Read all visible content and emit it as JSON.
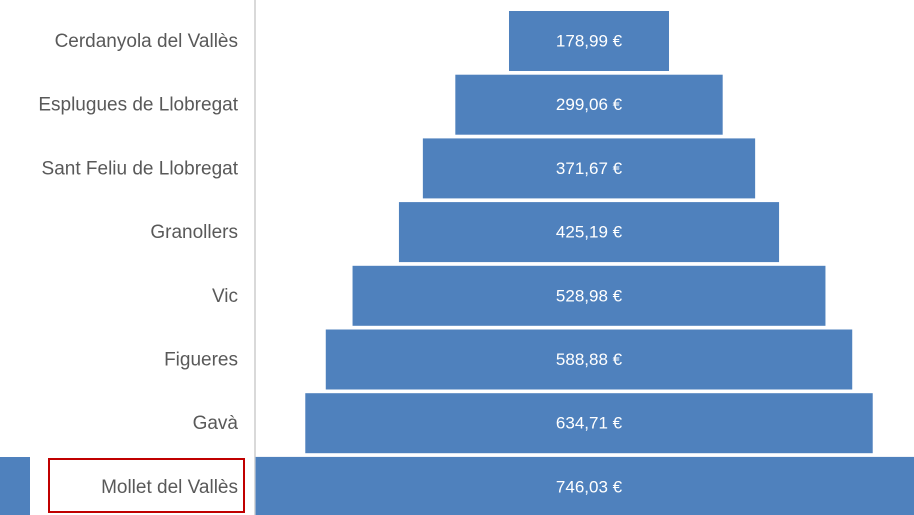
{
  "chart_data": {
    "type": "funnel",
    "categories": [
      "Cerdanyola del Vallès",
      "Esplugues de Llobregat",
      "Sant Feliu de Llobregat",
      "Granollers",
      "Vic",
      "Figueres",
      "Gavà",
      "Mollet del Vallès"
    ],
    "values": [
      178.99,
      299.06,
      371.67,
      425.19,
      528.98,
      588.88,
      634.71,
      746.03
    ],
    "value_labels": [
      "178,99 €",
      "299,06 €",
      "371,67 €",
      "425,19 €",
      "528,98 €",
      "588,88 €",
      "634,71 €",
      "746,03 €"
    ],
    "color": "#4f81bd"
  }
}
